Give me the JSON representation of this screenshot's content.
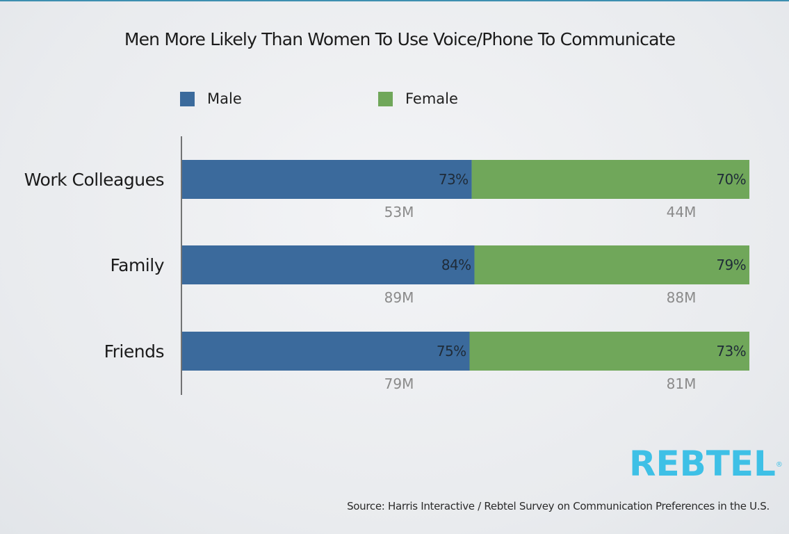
{
  "header": {
    "title": "Men More Likely Than Women To Use Voice/Phone To Communicate"
  },
  "legend": {
    "items": [
      {
        "label": "Male",
        "color": "#3b6a9c"
      },
      {
        "label": "Female",
        "color": "#70a75a"
      }
    ]
  },
  "chart_data": {
    "type": "bar",
    "orientation": "horizontal",
    "stacked": true,
    "categories": [
      "Work Colleagues",
      "Family",
      "Friends"
    ],
    "series": [
      {
        "name": "Male",
        "values": [
          73,
          84,
          75
        ],
        "labels": [
          "73%",
          "84%",
          "75%"
        ],
        "counts": [
          "53M",
          "89M",
          "79M"
        ],
        "color": "#3b6a9c"
      },
      {
        "name": "Female",
        "values": [
          70,
          79,
          73
        ],
        "labels": [
          "70%",
          "79%",
          "73%"
        ],
        "counts": [
          "44M",
          "88M",
          "81M"
        ],
        "color": "#70a75a"
      }
    ],
    "grid": false,
    "legend_position": "top-left"
  },
  "logo": {
    "text": "REBTEL",
    "mark": "®"
  },
  "footer": {
    "source": "Source: Harris Interactive / Rebtel Survey on Communication Preferences in the U.S."
  }
}
